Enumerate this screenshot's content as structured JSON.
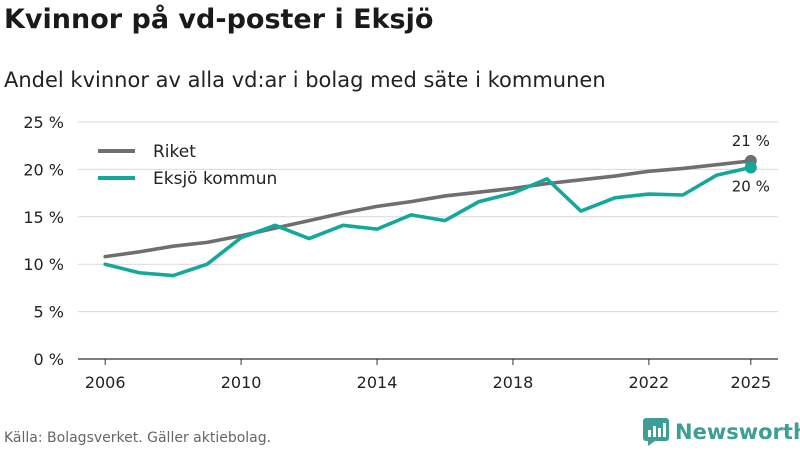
{
  "header": {
    "title": "Kvinnor på vd-poster i Eksjö",
    "subtitle": "Andel kvinnor av alla vd:ar i bolag med säte i kommunen"
  },
  "footer": {
    "source": "Källa: Bolagsverket. Gäller aktiebolag.",
    "brand": "Newsworthy",
    "brand_icon": "newsworthy-logo-icon"
  },
  "colors": {
    "riket": "#6f6f6f",
    "eksjo": "#14a89d",
    "grid": "#d9d9d9",
    "brand": "#3d9e96"
  },
  "chart_data": {
    "type": "line",
    "title": "Kvinnor på vd-poster i Eksjö",
    "subtitle": "Andel kvinnor av alla vd:ar i bolag med säte i kommunen",
    "xlabel": "",
    "ylabel": "",
    "x": [
      2006,
      2007,
      2008,
      2009,
      2010,
      2011,
      2012,
      2013,
      2014,
      2015,
      2016,
      2017,
      2018,
      2019,
      2020,
      2021,
      2022,
      2023,
      2024,
      2025
    ],
    "xticks": [
      2006,
      2010,
      2014,
      2018,
      2022,
      2025
    ],
    "xtick_labels": [
      "2006",
      "2010",
      "2014",
      "2018",
      "2022",
      "2025"
    ],
    "ylim": [
      0,
      25
    ],
    "yticks": [
      0,
      5,
      10,
      15,
      20,
      25
    ],
    "ytick_labels": [
      "0 %",
      "5 %",
      "10 %",
      "15 %",
      "20 %",
      "25 %"
    ],
    "grid": true,
    "legend_position": "top-left",
    "series": [
      {
        "name": "Riket",
        "color": "#6f6f6f",
        "values": [
          10.8,
          11.3,
          11.9,
          12.3,
          13.0,
          13.8,
          14.6,
          15.4,
          16.1,
          16.6,
          17.2,
          17.6,
          18.0,
          18.5,
          18.9,
          19.3,
          19.8,
          20.1,
          20.5,
          20.9
        ],
        "end_label": "21 %"
      },
      {
        "name": "Eksjö kommun",
        "color": "#14a89d",
        "values": [
          10.0,
          9.1,
          8.8,
          10.0,
          12.8,
          14.1,
          12.7,
          14.1,
          13.7,
          15.2,
          14.6,
          16.6,
          17.5,
          19.0,
          15.6,
          17.0,
          17.4,
          17.3,
          19.4,
          20.2
        ],
        "end_label": "20 %"
      }
    ]
  }
}
